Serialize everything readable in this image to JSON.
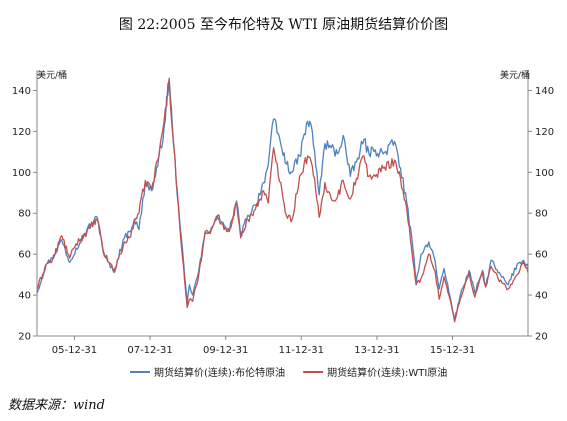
{
  "title": "图 22:2005 至今布伦特及 WTI 原油期货结算价价图",
  "source": "数据来源：wind",
  "chart_data": {
    "type": "line",
    "title": "图 22:2005 至今布伦特及 WTI 原油期货结算价价图",
    "y_unit_left": "美元/桶",
    "y_unit_right": "美元/桶",
    "ylim": [
      20,
      150
    ],
    "yticks": [
      20,
      40,
      60,
      80,
      100,
      120,
      140
    ],
    "ytick_labels": [
      "20",
      "40",
      "60",
      "80",
      "100",
      "120",
      "140"
    ],
    "xlim": [
      "2005-01-03",
      "2017-12-29"
    ],
    "xticks": [
      "2005-12-31",
      "2007-12-31",
      "2009-12-31",
      "2011-12-31",
      "2013-12-31",
      "2015-12-31"
    ],
    "xtick_labels": [
      "05-12-31",
      "07-12-31",
      "09-12-31",
      "11-12-31",
      "13-12-31",
      "15-12-31"
    ],
    "legend": "bottom",
    "grid": false,
    "series": [
      {
        "name": "期货结算价(连续):布伦特原油",
        "color": "#4f81bd",
        "points": [
          [
            "2005-01-03",
            41
          ],
          [
            "2005-04-01",
            55
          ],
          [
            "2005-06-01",
            58
          ],
          [
            "2005-08-30",
            67
          ],
          [
            "2005-11-15",
            56
          ],
          [
            "2006-01-15",
            63
          ],
          [
            "2006-05-01",
            72
          ],
          [
            "2006-08-08",
            78
          ],
          [
            "2006-10-15",
            59
          ],
          [
            "2007-01-18",
            51
          ],
          [
            "2007-04-15",
            67
          ],
          [
            "2007-06-15",
            71
          ],
          [
            "2007-08-01",
            77
          ],
          [
            "2007-09-15",
            72
          ],
          [
            "2007-11-15",
            95
          ],
          [
            "2008-01-15",
            91
          ],
          [
            "2008-03-15",
            103
          ],
          [
            "2008-05-15",
            122
          ],
          [
            "2008-07-03",
            146
          ],
          [
            "2008-08-15",
            113
          ],
          [
            "2008-10-15",
            74
          ],
          [
            "2008-12-24",
            36
          ],
          [
            "2009-01-15",
            45
          ],
          [
            "2009-02-15",
            40
          ],
          [
            "2009-04-15",
            52
          ],
          [
            "2009-06-15",
            70
          ],
          [
            "2009-08-15",
            73
          ],
          [
            "2009-10-15",
            78
          ],
          [
            "2009-12-15",
            74
          ],
          [
            "2010-02-05",
            71
          ],
          [
            "2010-04-15",
            86
          ],
          [
            "2010-05-25",
            69
          ],
          [
            "2010-08-01",
            79
          ],
          [
            "2010-10-15",
            84
          ],
          [
            "2010-12-31",
            95
          ],
          [
            "2011-02-15",
            104
          ],
          [
            "2011-04-08",
            126
          ],
          [
            "2011-06-15",
            114
          ],
          [
            "2011-08-09",
            104
          ],
          [
            "2011-10-04",
            100
          ],
          [
            "2011-12-15",
            108
          ],
          [
            "2012-03-01",
            125
          ],
          [
            "2012-04-15",
            120
          ],
          [
            "2012-06-21",
            89
          ],
          [
            "2012-08-15",
            114
          ],
          [
            "2012-10-15",
            112
          ],
          [
            "2012-12-15",
            109
          ],
          [
            "2013-02-08",
            118
          ],
          [
            "2013-04-17",
            98
          ],
          [
            "2013-06-15",
            105
          ],
          [
            "2013-08-27",
            116
          ],
          [
            "2013-10-15",
            109
          ],
          [
            "2013-12-15",
            111
          ],
          [
            "2014-03-01",
            109
          ],
          [
            "2014-06-19",
            115
          ],
          [
            "2014-08-15",
            102
          ],
          [
            "2014-10-15",
            85
          ],
          [
            "2014-12-15",
            62
          ],
          [
            "2015-01-13",
            46
          ],
          [
            "2015-03-01",
            60
          ],
          [
            "2015-05-15",
            66
          ],
          [
            "2015-07-15",
            57
          ],
          [
            "2015-08-24",
            43
          ],
          [
            "2015-10-10",
            53
          ],
          [
            "2015-12-20",
            36
          ],
          [
            "2016-01-20",
            28
          ],
          [
            "2016-03-15",
            40
          ],
          [
            "2016-06-08",
            52
          ],
          [
            "2016-08-02",
            41
          ],
          [
            "2016-10-15",
            52
          ],
          [
            "2016-11-15",
            44
          ],
          [
            "2017-01-06",
            57
          ],
          [
            "2017-03-15",
            51
          ],
          [
            "2017-06-21",
            45
          ],
          [
            "2017-09-15",
            55
          ],
          [
            "2017-11-15",
            57
          ],
          [
            "2017-12-29",
            54
          ]
        ]
      },
      {
        "name": "期货结算价(连续):WTI原油",
        "color": "#c0504d",
        "points": [
          [
            "2005-01-03",
            43
          ],
          [
            "2005-04-01",
            55
          ],
          [
            "2005-06-01",
            57
          ],
          [
            "2005-08-30",
            69
          ],
          [
            "2005-11-15",
            58
          ],
          [
            "2006-01-15",
            65
          ],
          [
            "2006-05-01",
            71
          ],
          [
            "2006-08-08",
            77
          ],
          [
            "2006-10-15",
            60
          ],
          [
            "2007-01-18",
            52
          ],
          [
            "2007-04-15",
            64
          ],
          [
            "2007-06-15",
            68
          ],
          [
            "2007-08-01",
            76
          ],
          [
            "2007-09-15",
            80
          ],
          [
            "2007-11-15",
            96
          ],
          [
            "2008-01-15",
            92
          ],
          [
            "2008-03-15",
            106
          ],
          [
            "2008-05-15",
            125
          ],
          [
            "2008-07-03",
            145
          ],
          [
            "2008-08-15",
            114
          ],
          [
            "2008-10-15",
            72
          ],
          [
            "2008-12-24",
            34
          ],
          [
            "2009-01-15",
            38
          ],
          [
            "2009-02-15",
            37
          ],
          [
            "2009-04-15",
            50
          ],
          [
            "2009-06-15",
            71
          ],
          [
            "2009-08-15",
            72
          ],
          [
            "2009-10-15",
            79
          ],
          [
            "2009-12-15",
            72
          ],
          [
            "2010-02-05",
            72
          ],
          [
            "2010-04-15",
            85
          ],
          [
            "2010-05-25",
            68
          ],
          [
            "2010-08-01",
            77
          ],
          [
            "2010-10-15",
            82
          ],
          [
            "2010-12-31",
            91
          ],
          [
            "2011-02-15",
            85
          ],
          [
            "2011-04-08",
            112
          ],
          [
            "2011-06-15",
            95
          ],
          [
            "2011-08-09",
            79
          ],
          [
            "2011-10-04",
            77
          ],
          [
            "2011-12-15",
            98
          ],
          [
            "2012-03-01",
            108
          ],
          [
            "2012-04-15",
            103
          ],
          [
            "2012-06-21",
            78
          ],
          [
            "2012-08-15",
            95
          ],
          [
            "2012-10-15",
            87
          ],
          [
            "2012-12-15",
            88
          ],
          [
            "2013-02-08",
            96
          ],
          [
            "2013-04-17",
            87
          ],
          [
            "2013-06-15",
            97
          ],
          [
            "2013-08-27",
            108
          ],
          [
            "2013-10-15",
            98
          ],
          [
            "2013-12-15",
            98
          ],
          [
            "2014-03-01",
            102
          ],
          [
            "2014-06-19",
            106
          ],
          [
            "2014-08-15",
            97
          ],
          [
            "2014-10-15",
            82
          ],
          [
            "2014-12-15",
            56
          ],
          [
            "2015-01-13",
            45
          ],
          [
            "2015-03-01",
            48
          ],
          [
            "2015-05-15",
            60
          ],
          [
            "2015-07-15",
            52
          ],
          [
            "2015-08-24",
            38
          ],
          [
            "2015-10-10",
            49
          ],
          [
            "2015-12-20",
            35
          ],
          [
            "2016-01-20",
            27
          ],
          [
            "2016-03-15",
            38
          ],
          [
            "2016-06-08",
            51
          ],
          [
            "2016-08-02",
            39
          ],
          [
            "2016-10-15",
            51
          ],
          [
            "2016-11-15",
            44
          ],
          [
            "2017-01-06",
            54
          ],
          [
            "2017-03-15",
            48
          ],
          [
            "2017-06-21",
            43
          ],
          [
            "2017-09-15",
            50
          ],
          [
            "2017-11-15",
            56
          ],
          [
            "2017-12-29",
            51
          ]
        ]
      }
    ]
  }
}
